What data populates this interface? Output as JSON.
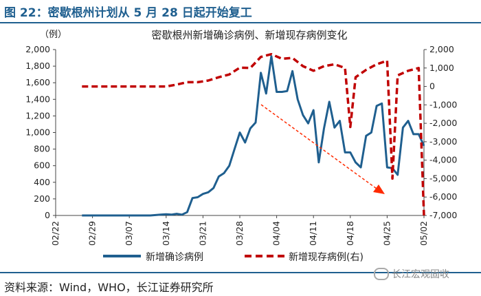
{
  "figure": {
    "label": "图 22：密歇根州计划从 5 月 28 日起开始复工",
    "source": "资料来源：Wind，WHO，长江证券研究所",
    "watermark": "长江宏观固收"
  },
  "chart_data": {
    "type": "line",
    "title": "密歇根州新增确诊病例、新增现存病例变化",
    "unit_label": "（例）",
    "x_ticks": [
      "02/22",
      "02/29",
      "03/07",
      "03/14",
      "03/21",
      "03/28",
      "04/04",
      "04/11",
      "04/18",
      "04/25",
      "05/02"
    ],
    "y_left": {
      "ylim": [
        0,
        2000
      ],
      "ticks": [
        "0",
        "200",
        "400",
        "600",
        "800",
        "1,000",
        "1,200",
        "1,400",
        "1,600",
        "1,800",
        "2,000"
      ]
    },
    "y_right": {
      "ylim": [
        -7000,
        2000
      ],
      "ticks": [
        "-7,000",
        "-6,000",
        "-5,000",
        "-4,000",
        "-3,000",
        "-2,000",
        "-1,000",
        "0",
        "1,000",
        "2,000"
      ]
    },
    "series": [
      {
        "name": "新增确诊病例",
        "axis": "left",
        "color": "#1f5f8f",
        "style": "solid",
        "x": [
          "02/27",
          "02/28",
          "02/29",
          "03/01",
          "03/02",
          "03/03",
          "03/04",
          "03/05",
          "03/06",
          "03/07",
          "03/08",
          "03/09",
          "03/10",
          "03/11",
          "03/12",
          "03/13",
          "03/14",
          "03/15",
          "03/16",
          "03/17",
          "03/18",
          "03/19",
          "03/20",
          "03/21",
          "03/22",
          "03/23",
          "03/24",
          "03/25",
          "03/26",
          "03/27",
          "03/28",
          "03/29",
          "03/30",
          "03/31",
          "04/01",
          "04/02",
          "04/03",
          "04/04",
          "04/05",
          "04/06",
          "04/07",
          "04/08",
          "04/09",
          "04/10",
          "04/11",
          "04/12",
          "04/13",
          "04/14",
          "04/15",
          "04/16",
          "04/17",
          "04/18",
          "04/19",
          "04/20",
          "04/21",
          "04/22",
          "04/23",
          "04/24",
          "04/25",
          "04/26",
          "04/27",
          "04/28",
          "04/29",
          "04/30",
          "05/01",
          "05/02"
        ],
        "values": [
          0,
          0,
          0,
          0,
          0,
          0,
          0,
          0,
          0,
          0,
          0,
          0,
          0,
          0,
          5,
          10,
          15,
          10,
          20,
          10,
          40,
          210,
          220,
          260,
          280,
          330,
          470,
          510,
          600,
          800,
          1000,
          880,
          1050,
          1120,
          1720,
          1470,
          1920,
          1490,
          1490,
          1500,
          1740,
          1400,
          1210,
          1110,
          1270,
          640,
          1050,
          1370,
          1060,
          1140,
          760,
          760,
          640,
          580,
          960,
          1000,
          1320,
          1350,
          580,
          570,
          490,
          1060,
          1140,
          980,
          980,
          840
        ]
      },
      {
        "name": "新增现存病例(右)",
        "axis": "right",
        "color": "#c00000",
        "style": "dashed",
        "x": [
          "02/27",
          "03/14",
          "03/16",
          "03/18",
          "03/20",
          "03/22",
          "03/24",
          "03/26",
          "03/28",
          "03/30",
          "04/01",
          "04/03",
          "04/05",
          "04/07",
          "04/09",
          "04/11",
          "04/13",
          "04/15",
          "04/17",
          "04/18",
          "04/19",
          "04/21",
          "04/23",
          "04/25",
          "04/26",
          "04/27",
          "04/29",
          "05/01",
          "05/02"
        ],
        "values": [
          0,
          0,
          100,
          230,
          230,
          320,
          500,
          650,
          1020,
          1000,
          1600,
          1750,
          1500,
          1550,
          1100,
          850,
          1100,
          1200,
          1000,
          -2200,
          500,
          900,
          1200,
          1400,
          -5000,
          600,
          850,
          1000,
          -7000
        ]
      }
    ],
    "legend_position": "bottom",
    "annotation": "red dashed downward arrow"
  }
}
